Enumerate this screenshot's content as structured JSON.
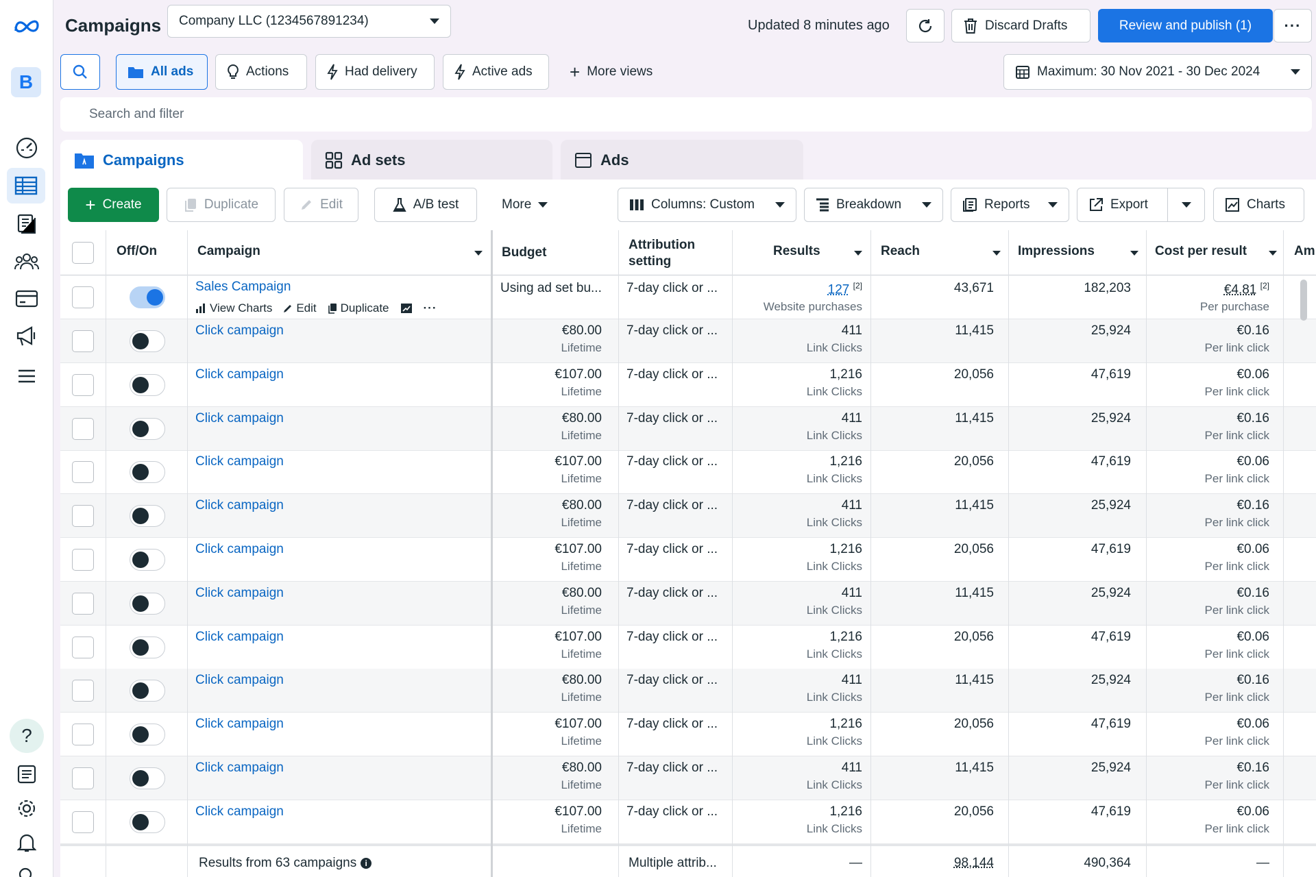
{
  "header": {
    "title": "Campaigns",
    "account": "Company LLC (1234567891234)",
    "updated": "Updated 8 minutes ago",
    "discard": "Discard Drafts",
    "publish": "Review and publish (1)"
  },
  "nav": {
    "badge": "B"
  },
  "views": {
    "all_ads": "All ads",
    "actions": "Actions",
    "had_delivery": "Had delivery",
    "active_ads": "Active ads",
    "more_views": "More views",
    "date_range": "Maximum: 30 Nov 2021 - 30 Dec 2024"
  },
  "search": {
    "placeholder": "Search and filter"
  },
  "tabs": {
    "campaigns": "Campaigns",
    "ad_sets": "Ad sets",
    "ads": "Ads"
  },
  "toolbar": {
    "create": "Create",
    "duplicate": "Duplicate",
    "edit": "Edit",
    "ab_test": "A/B test",
    "more": "More",
    "columns": "Columns: Custom",
    "breakdown": "Breakdown",
    "reports": "Reports",
    "export": "Export",
    "charts": "Charts"
  },
  "columns": {
    "offon": "Off/On",
    "campaign": "Campaign",
    "budget": "Budget",
    "attr1": "Attribution",
    "attr2": "setting",
    "results": "Results",
    "reach": "Reach",
    "impressions": "Impressions",
    "cpr": "Cost per result",
    "amount": "Am"
  },
  "first_row": {
    "name": "Sales Campaign",
    "view_charts": "View Charts",
    "edit": "Edit",
    "duplicate": "Duplicate",
    "budget": "Using ad set bu...",
    "attribution": "7-day click or ...",
    "results": "127",
    "results_note": "[2]",
    "results_sub": "Website purchases",
    "reach": "43,671",
    "impressions": "182,203",
    "cpr": "€4.81",
    "cpr_note": "[2]",
    "cpr_sub": "Per purchase"
  },
  "rows": [
    {
      "name": "Click campaign",
      "budget": "€80.00",
      "budget_sub": "Lifetime",
      "attribution": "7-day click or ...",
      "results": "411",
      "results_sub": "Link Clicks",
      "reach": "11,415",
      "impressions": "25,924",
      "cpr": "€0.16",
      "cpr_sub": "Per link click"
    },
    {
      "name": "Click campaign",
      "budget": "€107.00",
      "budget_sub": "Lifetime",
      "attribution": "7-day click or ...",
      "results": "1,216",
      "results_sub": "Link Clicks",
      "reach": "20,056",
      "impressions": "47,619",
      "cpr": "€0.06",
      "cpr_sub": "Per link click"
    },
    {
      "name": "Click campaign",
      "budget": "€80.00",
      "budget_sub": "Lifetime",
      "attribution": "7-day click or ...",
      "results": "411",
      "results_sub": "Link Clicks",
      "reach": "11,415",
      "impressions": "25,924",
      "cpr": "€0.16",
      "cpr_sub": "Per link click"
    },
    {
      "name": "Click campaign",
      "budget": "€107.00",
      "budget_sub": "Lifetime",
      "attribution": "7-day click or ...",
      "results": "1,216",
      "results_sub": "Link Clicks",
      "reach": "20,056",
      "impressions": "47,619",
      "cpr": "€0.06",
      "cpr_sub": "Per link click"
    },
    {
      "name": "Click campaign",
      "budget": "€80.00",
      "budget_sub": "Lifetime",
      "attribution": "7-day click or ...",
      "results": "411",
      "results_sub": "Link Clicks",
      "reach": "11,415",
      "impressions": "25,924",
      "cpr": "€0.16",
      "cpr_sub": "Per link click"
    },
    {
      "name": "Click campaign",
      "budget": "€107.00",
      "budget_sub": "Lifetime",
      "attribution": "7-day click or ...",
      "results": "1,216",
      "results_sub": "Link Clicks",
      "reach": "20,056",
      "impressions": "47,619",
      "cpr": "€0.06",
      "cpr_sub": "Per link click"
    },
    {
      "name": "Click campaign",
      "budget": "€80.00",
      "budget_sub": "Lifetime",
      "attribution": "7-day click or ...",
      "results": "411",
      "results_sub": "Link Clicks",
      "reach": "11,415",
      "impressions": "25,924",
      "cpr": "€0.16",
      "cpr_sub": "Per link click"
    },
    {
      "name": "Click campaign",
      "budget": "€107.00",
      "budget_sub": "Lifetime",
      "attribution": "7-day click or ...",
      "results": "1,216",
      "results_sub": "Link Clicks",
      "reach": "20,056",
      "impressions": "47,619",
      "cpr": "€0.06",
      "cpr_sub": "Per link click"
    },
    {
      "name": "Click campaign",
      "budget": "€80.00",
      "budget_sub": "Lifetime",
      "attribution": "7-day click or ...",
      "results": "411",
      "results_sub": "Link Clicks",
      "reach": "11,415",
      "impressions": "25,924",
      "cpr": "€0.16",
      "cpr_sub": "Per link click"
    },
    {
      "name": "Click campaign",
      "budget": "€107.00",
      "budget_sub": "Lifetime",
      "attribution": "7-day click or ...",
      "results": "1,216",
      "results_sub": "Link Clicks",
      "reach": "20,056",
      "impressions": "47,619",
      "cpr": "€0.06",
      "cpr_sub": "Per link click"
    },
    {
      "name": "Click campaign",
      "budget": "€80.00",
      "budget_sub": "Lifetime",
      "attribution": "7-day click or ...",
      "results": "411",
      "results_sub": "Link Clicks",
      "reach": "11,415",
      "impressions": "25,924",
      "cpr": "€0.16",
      "cpr_sub": "Per link click"
    },
    {
      "name": "Click campaign",
      "budget": "€107.00",
      "budget_sub": "Lifetime",
      "attribution": "7-day click or ...",
      "results": "1,216",
      "results_sub": "Link Clicks",
      "reach": "20,056",
      "impressions": "47,619",
      "cpr": "€0.06",
      "cpr_sub": "Per link click"
    }
  ],
  "footer": {
    "label": "Results from 63 campaigns",
    "attribution": "Multiple attrib...",
    "results": "—",
    "reach": "98,144",
    "impressions": "490,364",
    "cpr": "—"
  },
  "colors": {
    "accent": "#1b74e4",
    "create": "#0f8a4a",
    "link": "#0a66c2"
  }
}
